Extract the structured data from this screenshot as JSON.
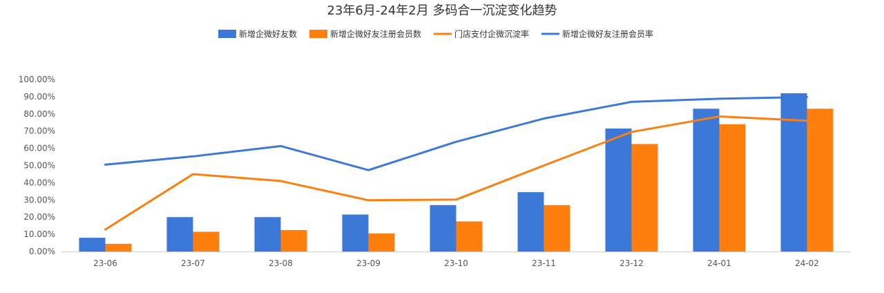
{
  "chart_data": {
    "type": "bar",
    "title": "23年6月-24年2月 多码合一沉淀变化趋势",
    "categories": [
      "23-06",
      "23-07",
      "23-08",
      "23-09",
      "23-10",
      "23-11",
      "23-12",
      "24-01",
      "24-02"
    ],
    "ylim": [
      0,
      100
    ],
    "yticks": [
      "0.00%",
      "10.00%",
      "20.00%",
      "30.00%",
      "40.00%",
      "50.00%",
      "60.00%",
      "70.00%",
      "80.00%",
      "90.00%",
      "100.00%"
    ],
    "legend_position": "top-center",
    "grid": false,
    "series": [
      {
        "name": "新增企微好友数",
        "kind": "bar",
        "color": "#3B78D8",
        "values": [
          8,
          20,
          20,
          21.5,
          27,
          34.5,
          71.5,
          83,
          92
        ]
      },
      {
        "name": "新增企微好友注册会员数",
        "kind": "bar",
        "color": "#FF7F0E",
        "values": [
          4.5,
          11.5,
          12.5,
          10.5,
          17.5,
          27,
          62.5,
          74,
          83
        ]
      },
      {
        "name": "门店支付企微沉淀率",
        "kind": "line",
        "color": "#FF7F0E",
        "values": [
          12.8,
          45,
          41,
          29.8,
          30.2,
          50,
          69.5,
          78.5,
          76
        ]
      },
      {
        "name": "新增企微好友注册会员率",
        "kind": "line",
        "color": "#3B78D8",
        "values": [
          50.5,
          55.3,
          61.3,
          47.3,
          63.8,
          77.3,
          87,
          88.8,
          89.8
        ]
      }
    ]
  }
}
